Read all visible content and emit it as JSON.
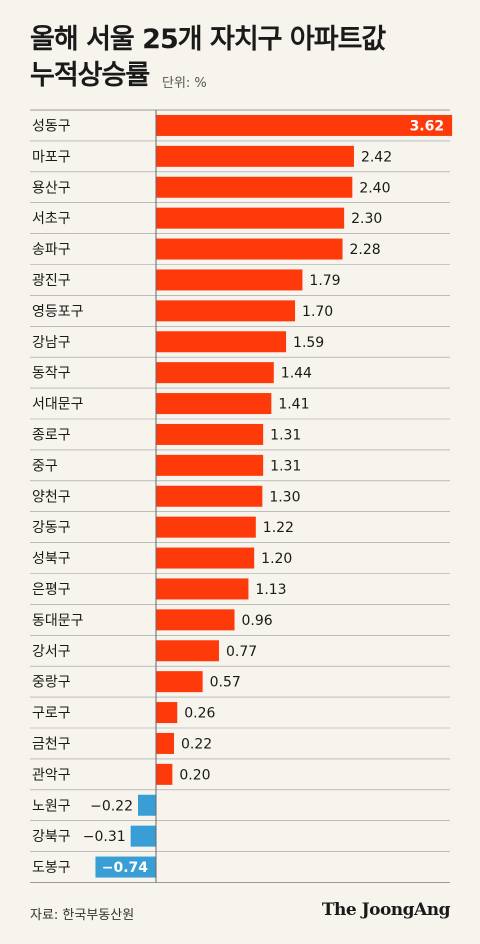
{
  "header": {
    "title_line1": "올해 서울 25개 자치구 아파트값",
    "title_line2": "누적상승률",
    "unit": "단위: %"
  },
  "footer": {
    "source": "자료: 한국부동산원",
    "logo": "The JoongAng"
  },
  "colors": {
    "positive": "#ff3a0a",
    "negative": "#3a9ed6",
    "grid": "#9a9a9a"
  },
  "chart_data": {
    "type": "bar",
    "orientation": "horizontal",
    "title": "올해 서울 25개 자치구 아파트값 누적상승률",
    "unit": "%",
    "grid": true,
    "categories": [
      "성동구",
      "마포구",
      "용산구",
      "서초구",
      "송파구",
      "광진구",
      "영등포구",
      "강남구",
      "동작구",
      "서대문구",
      "종로구",
      "중구",
      "양천구",
      "강동구",
      "성북구",
      "은평구",
      "동대문구",
      "강서구",
      "중랑구",
      "구로구",
      "금천구",
      "관악구",
      "노원구",
      "강북구",
      "도봉구"
    ],
    "values": [
      3.62,
      2.42,
      2.4,
      2.3,
      2.28,
      1.79,
      1.7,
      1.59,
      1.44,
      1.41,
      1.31,
      1.31,
      1.3,
      1.22,
      1.2,
      1.13,
      0.96,
      0.77,
      0.57,
      0.26,
      0.22,
      0.2,
      -0.22,
      -0.31,
      -0.74
    ],
    "labels": [
      "3.62",
      "2.42",
      "2.40",
      "2.30",
      "2.28",
      "1.79",
      "1.70",
      "1.59",
      "1.44",
      "1.41",
      "1.31",
      "1.31",
      "1.30",
      "1.22",
      "1.20",
      "1.13",
      "0.96",
      "0.77",
      "0.57",
      "0.26",
      "0.22",
      "0.20",
      "−0.22",
      "−0.31",
      "−0.74"
    ]
  }
}
